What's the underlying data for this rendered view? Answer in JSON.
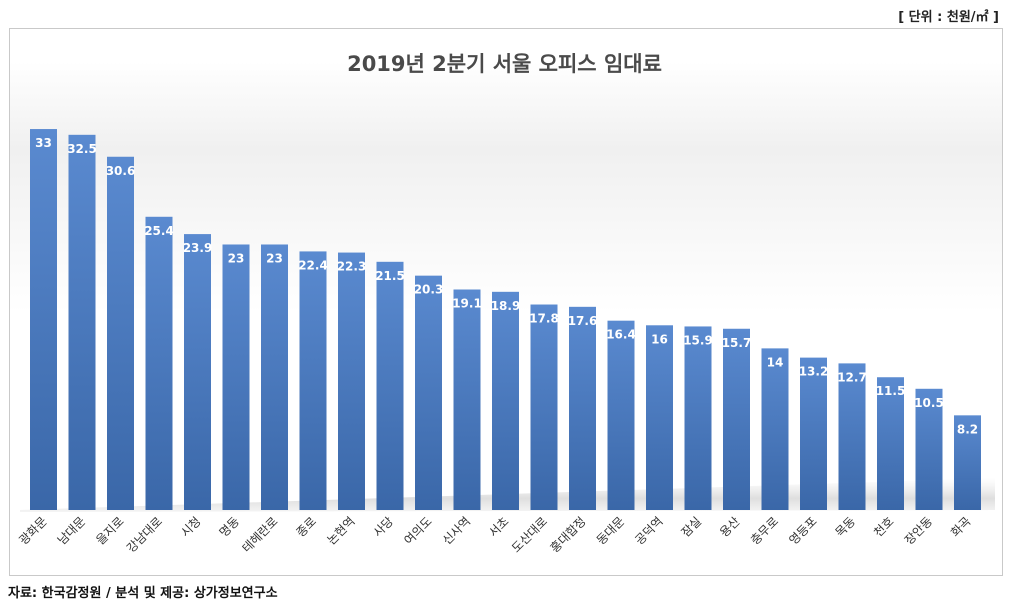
{
  "unit_label": "[ 단위 : 천원/㎡ ]",
  "source_label": "자료: 한국감정원 / 분석 및 제공: 상가정보연구소",
  "colors": {
    "bar_top": "#5a8ad0",
    "bar_bottom": "#3a67a8",
    "label_text": "#ffffff",
    "axis_text": "#333333"
  },
  "chart_data": {
    "type": "bar",
    "title": "2019년 2분기 서울 오피스 임대료",
    "xlabel": "",
    "ylabel": "",
    "categories": [
      "광화문",
      "남대문",
      "을지로",
      "강남대로",
      "시청",
      "명동",
      "테헤란로",
      "종로",
      "논현역",
      "사당",
      "여의도",
      "신사역",
      "서초",
      "도산대로",
      "홍대합정",
      "동대문",
      "공덕역",
      "잠실",
      "용산",
      "충무로",
      "영등포",
      "목동",
      "천호",
      "장안동",
      "화곡"
    ],
    "values": [
      33,
      32.5,
      30.6,
      25.4,
      23.9,
      23,
      23,
      22.4,
      22.3,
      21.5,
      20.3,
      19.1,
      18.9,
      17.8,
      17.6,
      16.4,
      16,
      15.9,
      15.7,
      14,
      13.2,
      12.7,
      11.5,
      10.5,
      8.2
    ],
    "ylim": [
      0,
      34
    ],
    "grid": false,
    "legend": "none"
  }
}
